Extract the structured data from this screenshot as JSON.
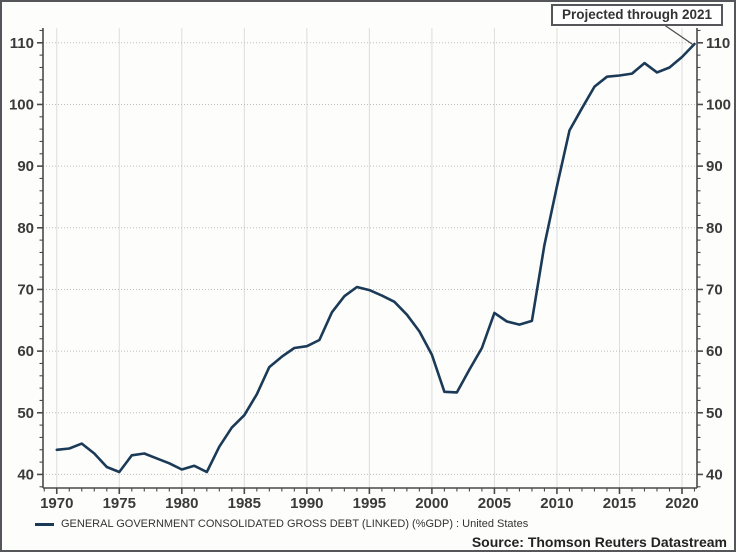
{
  "window": {
    "background": "#fdfdfb",
    "border_color": "#55565a"
  },
  "annotation": {
    "label": "Projected through 2021"
  },
  "legend": {
    "swatch_color": "#1b3a57",
    "label": "GENERAL GOVERNMENT CONSOLIDATED GROSS DEBT (LINKED) (%GDP) : United States"
  },
  "source_note": "Source: Thomson Reuters Datastream",
  "chart_data": {
    "type": "line",
    "title": "",
    "xlabel": "",
    "ylabel": "",
    "x_axis": {
      "min": 1968.9,
      "max": 2021.2,
      "major_ticks": [
        1970,
        1975,
        1980,
        1985,
        1990,
        1995,
        2000,
        2005,
        2010,
        2015,
        2020
      ],
      "minor_step": 1
    },
    "y_axis": {
      "min": 37.8,
      "max": 112.4,
      "major_ticks": [
        40,
        50,
        60,
        70,
        80,
        90,
        100,
        110
      ],
      "minor_step": 2,
      "labels_position": "left and right"
    },
    "grid": {
      "horizontal_style": "dotted",
      "vertical_style": "solid-light",
      "horizontal_color": "#bdbdbd",
      "vertical_color": "#dddddd"
    },
    "axis_color": "#4a4a4a",
    "tick_label_color": "#3a3a3a",
    "series": [
      {
        "name": "GENERAL GOVERNMENT CONSOLIDATED GROSS DEBT (LINKED) (%GDP) : United States",
        "color": "#1b3a57",
        "years": [
          1970,
          1971,
          1972,
          1973,
          1974,
          1975,
          1976,
          1977,
          1978,
          1979,
          1980,
          1981,
          1982,
          1983,
          1984,
          1985,
          1986,
          1987,
          1988,
          1989,
          1990,
          1991,
          1992,
          1993,
          1994,
          1995,
          1996,
          1997,
          1998,
          1999,
          2000,
          2001,
          2002,
          2003,
          2004,
          2005,
          2006,
          2007,
          2008,
          2009,
          2010,
          2011,
          2012,
          2013,
          2014,
          2015,
          2016,
          2017,
          2018,
          2019,
          2020,
          2021
        ],
        "values": [
          44.0,
          44.2,
          45.0,
          43.4,
          41.2,
          40.4,
          43.1,
          43.4,
          42.6,
          41.8,
          40.8,
          41.4,
          40.4,
          44.5,
          47.6,
          49.6,
          53.0,
          57.4,
          59.1,
          60.5,
          60.8,
          61.8,
          66.3,
          68.9,
          70.4,
          69.9,
          69.0,
          68.0,
          65.9,
          63.2,
          59.4,
          53.4,
          53.3,
          57.0,
          60.5,
          66.2,
          64.8,
          64.3,
          64.9,
          77.2,
          86.7,
          95.8,
          99.4,
          102.9,
          104.5,
          104.7,
          105.0,
          106.7,
          105.2,
          106.0,
          107.7,
          109.8
        ]
      }
    ],
    "annotations": [
      {
        "text": "Projected through 2021",
        "points_to": {
          "year": 2021,
          "value": 109.8
        }
      }
    ],
    "legend_position": "bottom-left"
  }
}
